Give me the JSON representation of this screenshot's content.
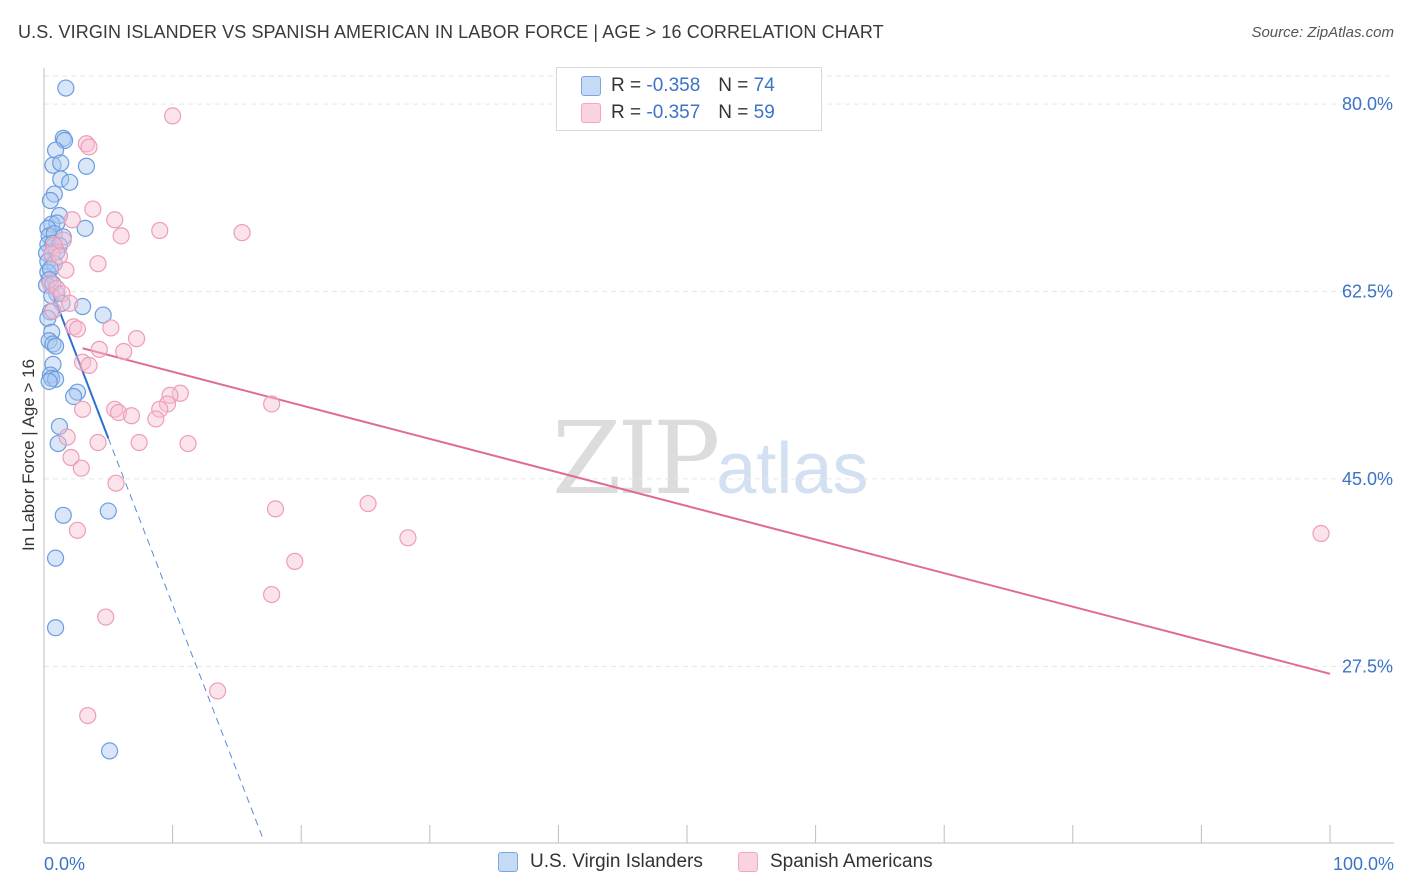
{
  "title": "U.S. VIRGIN ISLANDER VS SPANISH AMERICAN IN LABOR FORCE | AGE > 16 CORRELATION CHART",
  "source": "Source: ZipAtlas.com",
  "watermark": {
    "zip": "ZIP",
    "atlas": "atlas"
  },
  "colors": {
    "blue_fill": "#a9c8f0",
    "blue_stroke": "#6b9de0",
    "blue_line": "#2f6fd1",
    "pink_fill": "#f7c2d3",
    "pink_stroke": "#ee9cb8",
    "pink_line": "#e06b93",
    "tick_label": "#3b73c7",
    "grid": "#e6e6e6"
  },
  "legend": {
    "rows": [
      {
        "r_label": "R =",
        "r_value": "-0.358",
        "n_label": "N =",
        "n_value": "74"
      },
      {
        "r_label": "R =",
        "r_value": "-0.357",
        "n_label": "N =",
        "n_value": "59"
      }
    ]
  },
  "chart_data": {
    "type": "scatter",
    "title": "U.S. VIRGIN ISLANDER VS SPANISH AMERICAN IN LABOR FORCE | AGE > 16 CORRELATION CHART",
    "xlabel": "",
    "ylabel": "In Labor Force | Age > 16",
    "xlim": [
      0,
      100
    ],
    "ylim": [
      11,
      83
    ],
    "x_tick_labels": [
      "0.0%",
      "100.0%"
    ],
    "y_ticks": [
      80.0,
      62.5,
      45.0,
      27.5
    ],
    "y_tick_labels": [
      "80.0%",
      "62.5%",
      "45.0%",
      "27.5%"
    ],
    "grid": true,
    "legend_position": "top-center",
    "series": [
      {
        "name": "U.S. Virgin Islanders",
        "color": "blue",
        "R": -0.358,
        "N": 74,
        "trend_solid": {
          "x": [
            0.3,
            5.0
          ],
          "y": [
            63.5,
            48.8
          ]
        },
        "trend_dashed": {
          "x": [
            5.0,
            17.0
          ],
          "y": [
            48.8,
            11.5
          ]
        },
        "points": [
          {
            "x": 1.7,
            "y": 81.5
          },
          {
            "x": 1.5,
            "y": 76.8
          },
          {
            "x": 1.6,
            "y": 76.6
          },
          {
            "x": 0.9,
            "y": 75.7
          },
          {
            "x": 0.7,
            "y": 74.3
          },
          {
            "x": 1.3,
            "y": 74.5
          },
          {
            "x": 3.3,
            "y": 74.2
          },
          {
            "x": 1.3,
            "y": 73.0
          },
          {
            "x": 2.0,
            "y": 72.7
          },
          {
            "x": 0.8,
            "y": 71.6
          },
          {
            "x": 0.5,
            "y": 71.0
          },
          {
            "x": 1.2,
            "y": 69.6
          },
          {
            "x": 0.6,
            "y": 68.8
          },
          {
            "x": 1.0,
            "y": 68.9
          },
          {
            "x": 0.3,
            "y": 68.4
          },
          {
            "x": 3.2,
            "y": 68.4
          },
          {
            "x": 0.4,
            "y": 67.7
          },
          {
            "x": 0.8,
            "y": 67.9
          },
          {
            "x": 1.5,
            "y": 67.6
          },
          {
            "x": 0.3,
            "y": 66.9
          },
          {
            "x": 0.7,
            "y": 67.0
          },
          {
            "x": 1.2,
            "y": 66.8
          },
          {
            "x": 0.2,
            "y": 66.1
          },
          {
            "x": 0.6,
            "y": 66.0
          },
          {
            "x": 1.0,
            "y": 66.2
          },
          {
            "x": 0.3,
            "y": 65.3
          },
          {
            "x": 0.8,
            "y": 65.1
          },
          {
            "x": 0.3,
            "y": 64.3
          },
          {
            "x": 0.5,
            "y": 64.6
          },
          {
            "x": 0.4,
            "y": 63.6
          },
          {
            "x": 0.2,
            "y": 63.1
          },
          {
            "x": 0.7,
            "y": 63.2
          },
          {
            "x": 1.0,
            "y": 62.3
          },
          {
            "x": 0.6,
            "y": 62.1
          },
          {
            "x": 1.4,
            "y": 61.4
          },
          {
            "x": 3.0,
            "y": 61.1
          },
          {
            "x": 0.5,
            "y": 60.6
          },
          {
            "x": 0.3,
            "y": 60.0
          },
          {
            "x": 4.6,
            "y": 60.3
          },
          {
            "x": 0.6,
            "y": 58.7
          },
          {
            "x": 0.4,
            "y": 57.9
          },
          {
            "x": 0.7,
            "y": 57.6
          },
          {
            "x": 0.9,
            "y": 57.4
          },
          {
            "x": 0.7,
            "y": 55.7
          },
          {
            "x": 0.5,
            "y": 54.7
          },
          {
            "x": 0.6,
            "y": 54.4
          },
          {
            "x": 0.9,
            "y": 54.3
          },
          {
            "x": 0.4,
            "y": 54.1
          },
          {
            "x": 2.6,
            "y": 53.1
          },
          {
            "x": 2.3,
            "y": 52.7
          },
          {
            "x": 1.2,
            "y": 49.9
          },
          {
            "x": 1.1,
            "y": 48.3
          },
          {
            "x": 5.0,
            "y": 42.0
          },
          {
            "x": 1.5,
            "y": 41.6
          },
          {
            "x": 0.9,
            "y": 37.6
          },
          {
            "x": 0.9,
            "y": 31.1
          },
          {
            "x": 5.1,
            "y": 19.6
          }
        ]
      },
      {
        "name": "Spanish Americans",
        "color": "pink",
        "R": -0.357,
        "N": 59,
        "trend_solid": {
          "x": [
            3.0,
            100.0
          ],
          "y": [
            57.2,
            26.8
          ]
        },
        "points": [
          {
            "x": 10.0,
            "y": 78.9
          },
          {
            "x": 3.3,
            "y": 76.3
          },
          {
            "x": 3.5,
            "y": 76.0
          },
          {
            "x": 3.8,
            "y": 70.2
          },
          {
            "x": 2.2,
            "y": 69.2
          },
          {
            "x": 5.5,
            "y": 69.2
          },
          {
            "x": 9.0,
            "y": 68.2
          },
          {
            "x": 15.4,
            "y": 68.0
          },
          {
            "x": 6.0,
            "y": 67.7
          },
          {
            "x": 1.5,
            "y": 67.3
          },
          {
            "x": 0.8,
            "y": 66.8
          },
          {
            "x": 0.6,
            "y": 66.0
          },
          {
            "x": 1.2,
            "y": 65.8
          },
          {
            "x": 4.2,
            "y": 65.1
          },
          {
            "x": 1.7,
            "y": 64.5
          },
          {
            "x": 0.5,
            "y": 63.3
          },
          {
            "x": 1.0,
            "y": 62.8
          },
          {
            "x": 1.4,
            "y": 62.3
          },
          {
            "x": 2.0,
            "y": 61.4
          },
          {
            "x": 0.7,
            "y": 60.7
          },
          {
            "x": 2.3,
            "y": 59.2
          },
          {
            "x": 2.6,
            "y": 59.0
          },
          {
            "x": 5.2,
            "y": 59.1
          },
          {
            "x": 7.2,
            "y": 58.1
          },
          {
            "x": 4.3,
            "y": 57.1
          },
          {
            "x": 6.2,
            "y": 56.9
          },
          {
            "x": 3.0,
            "y": 55.9
          },
          {
            "x": 3.5,
            "y": 55.6
          },
          {
            "x": 10.6,
            "y": 53.0
          },
          {
            "x": 9.8,
            "y": 52.8
          },
          {
            "x": 9.6,
            "y": 52.0
          },
          {
            "x": 17.7,
            "y": 52.0
          },
          {
            "x": 5.5,
            "y": 51.5
          },
          {
            "x": 5.8,
            "y": 51.2
          },
          {
            "x": 9.0,
            "y": 51.5
          },
          {
            "x": 3.0,
            "y": 51.5
          },
          {
            "x": 6.8,
            "y": 50.9
          },
          {
            "x": 8.7,
            "y": 50.6
          },
          {
            "x": 1.8,
            "y": 48.9
          },
          {
            "x": 4.2,
            "y": 48.4
          },
          {
            "x": 7.4,
            "y": 48.4
          },
          {
            "x": 11.2,
            "y": 48.3
          },
          {
            "x": 2.1,
            "y": 47.0
          },
          {
            "x": 2.9,
            "y": 46.0
          },
          {
            "x": 5.6,
            "y": 44.6
          },
          {
            "x": 25.2,
            "y": 42.7
          },
          {
            "x": 18.0,
            "y": 42.2
          },
          {
            "x": 2.6,
            "y": 40.2
          },
          {
            "x": 28.3,
            "y": 39.5
          },
          {
            "x": 99.3,
            "y": 39.9
          },
          {
            "x": 19.5,
            "y": 37.3
          },
          {
            "x": 17.7,
            "y": 34.2
          },
          {
            "x": 4.8,
            "y": 32.1
          },
          {
            "x": 13.5,
            "y": 25.2
          },
          {
            "x": 3.4,
            "y": 22.9
          }
        ]
      }
    ]
  }
}
